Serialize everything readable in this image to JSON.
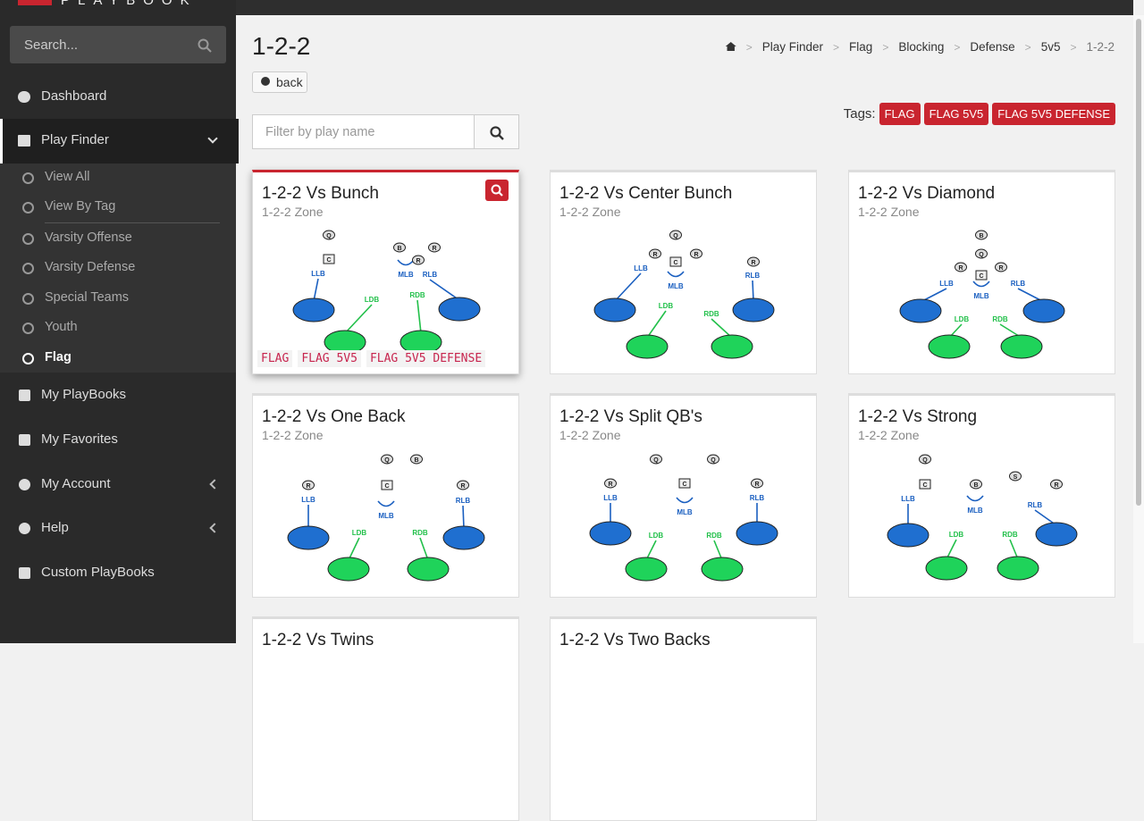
{
  "sidebar": {
    "brand": "PLAYBOOK",
    "search_placeholder": "Search...",
    "menu": [
      "Dashboard",
      "Play Finder"
    ],
    "submenu": [
      "View All",
      "View By Tag",
      "Varsity Offense",
      "Varsity Defense",
      "Special Teams",
      "Youth",
      "Flag"
    ],
    "menu_after": [
      "My PlayBooks",
      "My Favorites",
      "My Account",
      "Help",
      "Custom PlayBooks"
    ]
  },
  "header": {
    "title": "1-2-2",
    "back": "back",
    "breadcrumb": [
      "Play Finder",
      "Flag",
      "Blocking",
      "Defense",
      "5v5",
      "1-2-2"
    ],
    "tags_label": "Tags:",
    "tags": [
      "FLAG",
      "FLAG 5V5",
      "FLAG 5V5 DEFENSE"
    ],
    "filter_placeholder": "Filter by play name"
  },
  "cards": [
    {
      "title": "1-2-2 Vs Bunch",
      "subtitle": "1-2-2 Zone",
      "players": [
        "Q",
        "B",
        "R",
        "R",
        "C",
        "LLB",
        "MLB",
        "RLB",
        "LDB",
        "RDB"
      ],
      "tags": [
        "FLAG",
        "FLAG 5V5",
        "FLAG 5V5 DEFENSE"
      ]
    },
    {
      "title": "1-2-2 Vs Center Bunch",
      "subtitle": "1-2-2 Zone",
      "players": [
        "Q",
        "R",
        "C",
        "R",
        "R",
        "LLB",
        "MLB",
        "RLB",
        "LDB",
        "RDB"
      ]
    },
    {
      "title": "1-2-2 Vs Diamond",
      "subtitle": "1-2-2 Zone",
      "players": [
        "B",
        "Q",
        "R",
        "C",
        "R",
        "LLB",
        "MLB",
        "RLB",
        "LDB",
        "RDB"
      ]
    },
    {
      "title": "1-2-2 Vs One Back",
      "subtitle": "1-2-2 Zone",
      "players": [
        "Q",
        "B",
        "R",
        "C",
        "R",
        "LLB",
        "MLB",
        "RLB",
        "LDB",
        "RDB"
      ]
    },
    {
      "title": "1-2-2 Vs Split QB's",
      "subtitle": "1-2-2 Zone",
      "players": [
        "Q",
        "Q",
        "R",
        "C",
        "R",
        "LLB",
        "MLB",
        "RLB",
        "LDB",
        "RDB"
      ]
    },
    {
      "title": "1-2-2 Vs Strong",
      "subtitle": "1-2-2 Zone",
      "players": [
        "Q",
        "B",
        "S",
        "R",
        "C",
        "LLB",
        "MLB",
        "RLB",
        "LDB",
        "RDB"
      ]
    },
    {
      "title": "1-2-2 Vs Twins"
    },
    {
      "title": "1-2-2 Vs Two Backs"
    }
  ]
}
